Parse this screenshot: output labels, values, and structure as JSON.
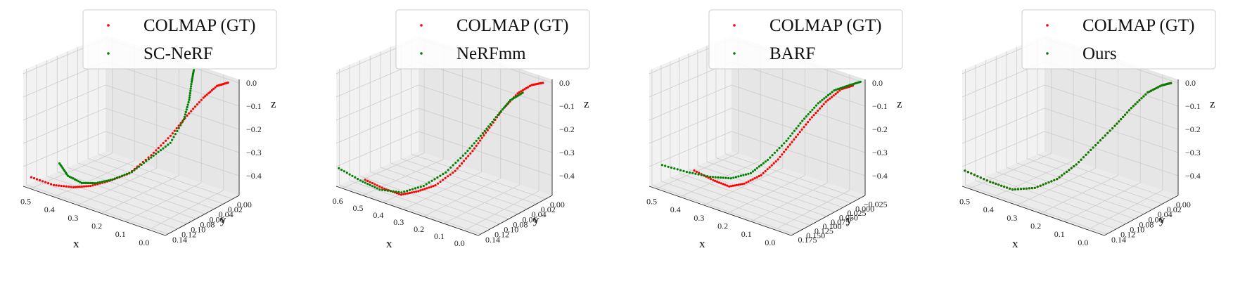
{
  "colors": {
    "gt": "#ff0000",
    "method": "#008000",
    "pane": "#f2f2f2",
    "grid": "#cccccc"
  },
  "chart_data": [
    {
      "type": "scatter",
      "projection": "3d",
      "legend": {
        "placement": "top",
        "entries": [
          "COLMAP (GT)",
          "SC-NeRF"
        ]
      },
      "xlabel": "x",
      "ylabel": "y",
      "zlabel": "z",
      "x_ticks": [
        "0.5",
        "0.4",
        "0.3",
        "0.2",
        "0.1",
        "0.0"
      ],
      "y_ticks": [
        "0.00",
        "0.02",
        "0.04",
        "0.06",
        "0.08",
        "0.10",
        "0.12",
        "0.14"
      ],
      "z_ticks": [
        "0.0",
        "−0.1",
        "−0.2",
        "−0.3",
        "−0.4"
      ],
      "xlim": [
        0.0,
        0.5
      ],
      "ylim": [
        0.0,
        0.14
      ],
      "zlim": [
        -0.47,
        0.02
      ],
      "series": [
        {
          "name": "COLMAP (GT)",
          "color": "#ff0000",
          "x": [
            0.49,
            0.42,
            0.36,
            0.31,
            0.27,
            0.22,
            0.17,
            0.13,
            0.1,
            0.07,
            0.05,
            0.03
          ],
          "y": [
            0.13,
            0.125,
            0.12,
            0.115,
            0.1,
            0.09,
            0.075,
            0.06,
            0.045,
            0.03,
            0.015,
            0.005
          ],
          "z": [
            -0.44,
            -0.45,
            -0.44,
            -0.42,
            -0.4,
            -0.36,
            -0.28,
            -0.2,
            -0.12,
            -0.05,
            -0.01,
            0.0
          ]
        },
        {
          "name": "SC-NeRF",
          "color": "#008000",
          "x": [
            0.4,
            0.38,
            0.34,
            0.3,
            0.26,
            0.22,
            0.18,
            0.14,
            0.12,
            0.12,
            0.13,
            0.14
          ],
          "y": [
            0.125,
            0.12,
            0.115,
            0.11,
            0.1,
            0.085,
            0.07,
            0.055,
            0.04,
            0.03,
            0.02,
            0.01
          ],
          "z": [
            -0.35,
            -0.4,
            -0.42,
            -0.41,
            -0.39,
            -0.36,
            -0.3,
            -0.24,
            -0.15,
            -0.08,
            -0.02,
            0.02
          ]
        }
      ]
    },
    {
      "type": "scatter",
      "projection": "3d",
      "legend": {
        "placement": "top",
        "entries": [
          "COLMAP (GT)",
          "NeRFmm"
        ]
      },
      "xlabel": "x",
      "ylabel": "y",
      "zlabel": "z",
      "x_ticks": [
        "0.6",
        "0.5",
        "0.4",
        "0.3",
        "0.2",
        "0.1",
        "0.0"
      ],
      "y_ticks": [
        "0.00",
        "0.02",
        "0.04",
        "0.06",
        "0.08",
        "0.10",
        "0.12",
        "0.14"
      ],
      "z_ticks": [
        "0.0",
        "−0.1",
        "−0.2",
        "−0.3",
        "−0.4"
      ],
      "xlim": [
        0.0,
        0.6
      ],
      "ylim": [
        0.0,
        0.14
      ],
      "zlim": [
        -0.47,
        0.02
      ],
      "series": [
        {
          "name": "COLMAP (GT)",
          "color": "#ff0000",
          "x": [
            0.5,
            0.43,
            0.37,
            0.32,
            0.27,
            0.22,
            0.18,
            0.15,
            0.12,
            0.09,
            0.06,
            0.03
          ],
          "y": [
            0.13,
            0.125,
            0.12,
            0.11,
            0.1,
            0.085,
            0.07,
            0.055,
            0.04,
            0.025,
            0.012,
            0.004
          ],
          "z": [
            -0.42,
            -0.44,
            -0.45,
            -0.43,
            -0.4,
            -0.34,
            -0.26,
            -0.18,
            -0.1,
            -0.04,
            -0.01,
            0.0
          ]
        },
        {
          "name": "NeRFmm",
          "color": "#008000",
          "x": [
            0.6,
            0.52,
            0.45,
            0.38,
            0.32,
            0.26,
            0.21,
            0.17,
            0.14,
            0.11,
            0.08
          ],
          "y": [
            0.135,
            0.13,
            0.125,
            0.115,
            0.1,
            0.085,
            0.07,
            0.055,
            0.04,
            0.03,
            0.02
          ],
          "z": [
            -0.4,
            -0.43,
            -0.45,
            -0.45,
            -0.42,
            -0.36,
            -0.28,
            -0.2,
            -0.13,
            -0.07,
            -0.04
          ]
        }
      ]
    },
    {
      "type": "scatter",
      "projection": "3d",
      "legend": {
        "placement": "top",
        "entries": [
          "COLMAP (GT)",
          "BARF"
        ]
      },
      "xlabel": "x",
      "ylabel": "y",
      "zlabel": "z",
      "x_ticks": [
        "0.5",
        "0.4",
        "0.3",
        "0.2",
        "0.1",
        "0.0"
      ],
      "y_ticks": [
        "−0.025",
        "0.000",
        "0.025",
        "0.050",
        "0.075",
        "0.100",
        "0.125",
        "0.150",
        "0.175"
      ],
      "z_ticks": [
        "0.0",
        "−0.1",
        "−0.2",
        "−0.3",
        "−0.4"
      ],
      "xlim": [
        0.0,
        0.5
      ],
      "ylim": [
        -0.025,
        0.175
      ],
      "zlim": [
        -0.47,
        0.02
      ],
      "series": [
        {
          "name": "COLMAP (GT)",
          "color": "#ff0000",
          "x": [
            0.4,
            0.34,
            0.29,
            0.25,
            0.21,
            0.17,
            0.14,
            0.11,
            0.08,
            0.05,
            0.03
          ],
          "y": [
            0.13,
            0.125,
            0.12,
            0.11,
            0.095,
            0.08,
            0.06,
            0.04,
            0.02,
            0.0,
            -0.015
          ],
          "z": [
            -0.4,
            -0.42,
            -0.43,
            -0.41,
            -0.37,
            -0.3,
            -0.22,
            -0.14,
            -0.07,
            -0.02,
            -0.01
          ]
        },
        {
          "name": "BARF",
          "color": "#008000",
          "x": [
            0.5,
            0.42,
            0.35,
            0.29,
            0.24,
            0.2,
            0.16,
            0.13,
            0.1,
            0.07,
            0.04,
            0.01
          ],
          "y": [
            0.14,
            0.135,
            0.125,
            0.115,
            0.1,
            0.085,
            0.065,
            0.045,
            0.025,
            0.005,
            -0.01,
            -0.02
          ],
          "z": [
            -0.41,
            -0.41,
            -0.41,
            -0.4,
            -0.37,
            -0.31,
            -0.23,
            -0.15,
            -0.08,
            -0.03,
            -0.01,
            0.01
          ]
        }
      ]
    },
    {
      "type": "scatter",
      "projection": "3d",
      "legend": {
        "placement": "top",
        "entries": [
          "COLMAP (GT)",
          "Ours"
        ]
      },
      "xlabel": "x",
      "ylabel": "y",
      "zlabel": "z",
      "x_ticks": [
        "0.5",
        "0.4",
        "0.3",
        "0.2",
        "0.1",
        "0.0"
      ],
      "y_ticks": [
        "0.00",
        "0.02",
        "0.04",
        "0.06",
        "0.08",
        "0.10",
        "0.12",
        "0.14"
      ],
      "z_ticks": [
        "0.0",
        "−0.1",
        "−0.2",
        "−0.3",
        "−0.4"
      ],
      "xlim": [
        0.0,
        0.5
      ],
      "ylim": [
        0.0,
        0.14
      ],
      "zlim": [
        -0.47,
        0.02
      ],
      "series": [
        {
          "name": "COLMAP (GT)",
          "color": "#ff0000",
          "x": [
            0.5,
            0.42,
            0.36,
            0.3,
            0.25,
            0.21,
            0.17,
            0.13,
            0.1,
            0.07,
            0.04,
            0.02
          ],
          "y": [
            0.135,
            0.13,
            0.12,
            0.11,
            0.095,
            0.08,
            0.065,
            0.05,
            0.035,
            0.02,
            0.01,
            0.003
          ],
          "z": [
            -0.41,
            -0.43,
            -0.45,
            -0.43,
            -0.39,
            -0.33,
            -0.25,
            -0.17,
            -0.1,
            -0.04,
            -0.01,
            0.0
          ]
        },
        {
          "name": "Ours",
          "color": "#008000",
          "x": [
            0.5,
            0.42,
            0.36,
            0.3,
            0.25,
            0.21,
            0.17,
            0.13,
            0.1,
            0.07,
            0.04,
            0.02
          ],
          "y": [
            0.135,
            0.13,
            0.12,
            0.11,
            0.095,
            0.08,
            0.065,
            0.05,
            0.035,
            0.02,
            0.01,
            0.003
          ],
          "z": [
            -0.41,
            -0.43,
            -0.45,
            -0.43,
            -0.39,
            -0.33,
            -0.25,
            -0.17,
            -0.1,
            -0.04,
            -0.01,
            0.0
          ]
        }
      ]
    }
  ]
}
